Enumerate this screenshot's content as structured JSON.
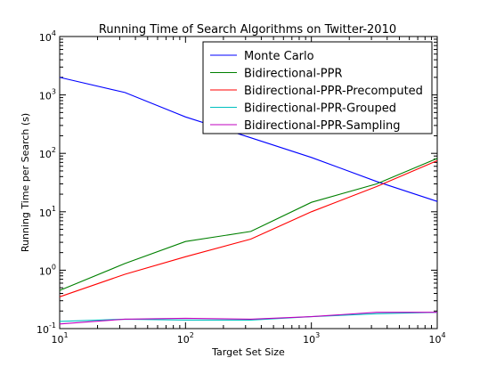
{
  "chart_data": {
    "type": "line",
    "title": "Running Time of Search Algorithms on Twitter-2010",
    "xlabel": "Target Set Size",
    "ylabel": "Running Time per Search (s)",
    "x_scale": "log",
    "y_scale": "log",
    "xlim": [
      10,
      10000
    ],
    "ylim": [
      0.1,
      10000
    ],
    "x_ticks": [
      {
        "base": "10",
        "exp": "1",
        "value": 10
      },
      {
        "base": "10",
        "exp": "2",
        "value": 100
      },
      {
        "base": "10",
        "exp": "3",
        "value": 1000
      },
      {
        "base": "10",
        "exp": "4",
        "value": 10000
      }
    ],
    "y_ticks": [
      {
        "base": "10",
        "exp": "-1",
        "value": 0.1
      },
      {
        "base": "10",
        "exp": "0",
        "value": 1
      },
      {
        "base": "10",
        "exp": "1",
        "value": 10
      },
      {
        "base": "10",
        "exp": "2",
        "value": 100
      },
      {
        "base": "10",
        "exp": "3",
        "value": 1000
      },
      {
        "base": "10",
        "exp": "4",
        "value": 10000
      }
    ],
    "grid": false,
    "legend_position": "top-right",
    "x": [
      10,
      33,
      100,
      330,
      1000,
      3300,
      10000
    ],
    "series": [
      {
        "name": "Monte Carlo",
        "color": "#0000ff",
        "values": [
          2000,
          1100,
          420,
          185,
          85,
          33,
          15
        ]
      },
      {
        "name": "Bidirectional-PPR",
        "color": "#008000",
        "values": [
          0.45,
          1.3,
          3.1,
          4.6,
          14.5,
          30,
          82
        ]
      },
      {
        "name": "Bidirectional-PPR-Precomputed",
        "color": "#ff0000",
        "values": [
          0.35,
          0.85,
          1.7,
          3.4,
          10,
          27,
          75
        ]
      },
      {
        "name": "Bidirectional-PPR-Grouped",
        "color": "#00bfbf",
        "values": [
          0.133,
          0.145,
          0.14,
          0.14,
          0.16,
          0.18,
          0.19
        ]
      },
      {
        "name": "Bidirectional-PPR-Sampling",
        "color": "#bf00bf",
        "values": [
          0.12,
          0.145,
          0.15,
          0.145,
          0.16,
          0.19,
          0.19
        ]
      }
    ]
  }
}
